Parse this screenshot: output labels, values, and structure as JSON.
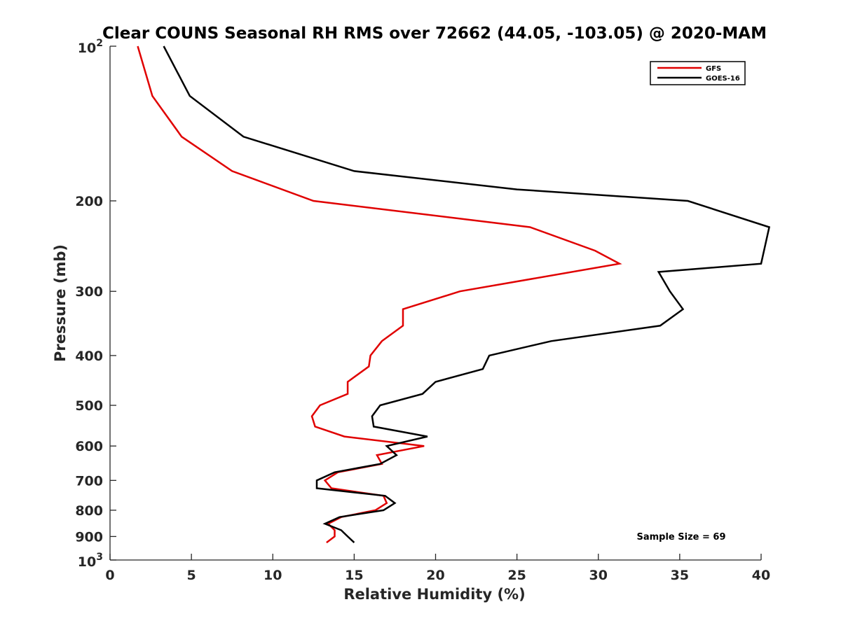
{
  "chart_data": {
    "type": "line",
    "title": "Clear COUNS Seasonal RH RMS over 72662 (44.05, -103.05) @ 2020-MAM",
    "xlabel": "Relative Humidity (%)",
    "ylabel": "Pressure (mb)",
    "xlim": [
      0,
      40
    ],
    "ylim": [
      100,
      1000
    ],
    "yscale": "log",
    "y_reversed": true,
    "grid": false,
    "legend_position": "top-right",
    "x_ticks": [
      0,
      5,
      10,
      15,
      20,
      25,
      30,
      35,
      40
    ],
    "y_ticks": [
      {
        "value": 100,
        "base": "10",
        "exp": "2"
      },
      {
        "value": 200,
        "label": "200"
      },
      {
        "value": 300,
        "label": "300"
      },
      {
        "value": 400,
        "label": "400"
      },
      {
        "value": 500,
        "label": "500"
      },
      {
        "value": 600,
        "label": "600"
      },
      {
        "value": 700,
        "label": "700"
      },
      {
        "value": 800,
        "label": "800"
      },
      {
        "value": 900,
        "label": "900"
      },
      {
        "value": 1000,
        "base": "10",
        "exp": "3"
      }
    ],
    "series": [
      {
        "name": "GFS",
        "color": "#e00000",
        "points": [
          [
            1.7,
            100
          ],
          [
            2.6,
            125
          ],
          [
            4.4,
            150
          ],
          [
            7.5,
            175
          ],
          [
            12.5,
            200
          ],
          [
            25.8,
            225
          ],
          [
            29.8,
            250
          ],
          [
            31.3,
            265
          ],
          [
            21.5,
            300
          ],
          [
            18.0,
            325
          ],
          [
            18.0,
            350
          ],
          [
            16.7,
            375
          ],
          [
            16.0,
            400
          ],
          [
            15.9,
            420
          ],
          [
            14.6,
            450
          ],
          [
            14.6,
            475
          ],
          [
            12.9,
            500
          ],
          [
            12.4,
            525
          ],
          [
            12.6,
            550
          ],
          [
            14.4,
            575
          ],
          [
            19.3,
            600
          ],
          [
            16.4,
            625
          ],
          [
            16.7,
            650
          ],
          [
            14.0,
            675
          ],
          [
            13.2,
            700
          ],
          [
            13.6,
            725
          ],
          [
            16.8,
            750
          ],
          [
            17.0,
            775
          ],
          [
            16.3,
            800
          ],
          [
            14.2,
            825
          ],
          [
            13.4,
            850
          ],
          [
            13.8,
            875
          ],
          [
            13.8,
            900
          ],
          [
            13.3,
            925
          ]
        ]
      },
      {
        "name": "GOES-16",
        "color": "#000000",
        "points": [
          [
            3.3,
            100
          ],
          [
            4.9,
            125
          ],
          [
            8.2,
            150
          ],
          [
            15.0,
            175
          ],
          [
            25.0,
            190
          ],
          [
            35.5,
            200
          ],
          [
            40.5,
            225
          ],
          [
            40.0,
            265
          ],
          [
            33.7,
            275
          ],
          [
            34.4,
            300
          ],
          [
            35.2,
            325
          ],
          [
            33.8,
            350
          ],
          [
            27.1,
            375
          ],
          [
            23.3,
            400
          ],
          [
            22.9,
            425
          ],
          [
            20.0,
            450
          ],
          [
            19.2,
            475
          ],
          [
            16.6,
            500
          ],
          [
            16.1,
            525
          ],
          [
            16.2,
            550
          ],
          [
            19.5,
            575
          ],
          [
            17.0,
            600
          ],
          [
            17.6,
            625
          ],
          [
            16.6,
            650
          ],
          [
            13.8,
            675
          ],
          [
            12.7,
            700
          ],
          [
            12.7,
            725
          ],
          [
            16.9,
            750
          ],
          [
            17.5,
            775
          ],
          [
            16.8,
            800
          ],
          [
            14.1,
            825
          ],
          [
            13.2,
            850
          ],
          [
            14.2,
            875
          ],
          [
            14.6,
            900
          ],
          [
            15.0,
            925
          ]
        ]
      }
    ],
    "annotation": "Sample Size = 69"
  }
}
